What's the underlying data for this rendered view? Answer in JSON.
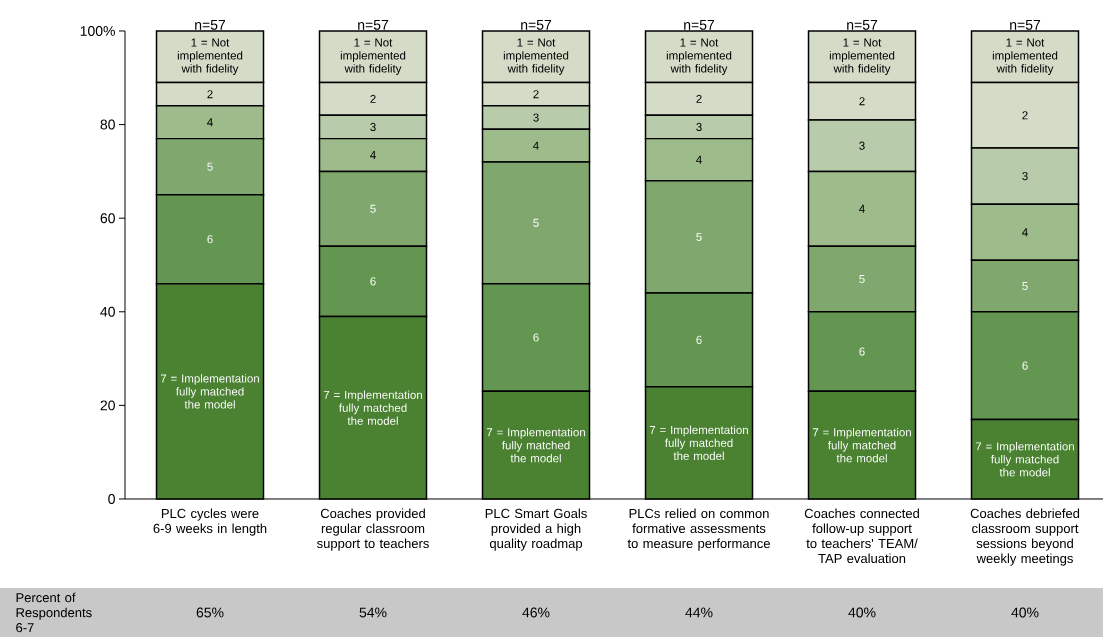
{
  "chart_data": {
    "type": "bar",
    "stacked": true,
    "categories": [
      "PLC cycles were 6-9 weeks in length",
      "Coaches provided regular classroom support to teachers",
      "PLC Smart Goals provided a high quality roadmap",
      "PLCs relied on common formative assessments to measure performance",
      "Coaches connected follow-up support to teachers' TEAM/ TAP evaluation",
      "Coaches debriefed classroom support sessions beyond weekly meetings"
    ],
    "series": [
      {
        "name": "7 = Implementation fully matched the model",
        "color": "#4a8232",
        "values": [
          46,
          39,
          23,
          24,
          23,
          17
        ]
      },
      {
        "name": "6",
        "color": "#639650",
        "values": [
          19,
          15,
          23,
          20,
          17,
          23
        ]
      },
      {
        "name": "5",
        "color": "#80a86e",
        "values": [
          12,
          16,
          26,
          24,
          14,
          11
        ]
      },
      {
        "name": "4",
        "color": "#9ebb8c",
        "values": [
          7,
          7,
          7,
          9,
          16,
          12
        ]
      },
      {
        "name": "3",
        "color": "#b8cbaa",
        "values": [
          0,
          5,
          5,
          5,
          11,
          12
        ]
      },
      {
        "name": "2",
        "color": "#d4dcc8",
        "values": [
          5,
          7,
          5,
          7,
          8,
          14
        ]
      },
      {
        "name": "1 = Not implemented with fidelity",
        "color": "#d4dcc8",
        "values": [
          11,
          11,
          11,
          11,
          11,
          11
        ]
      }
    ],
    "ylim": [
      0,
      100
    ],
    "yticks": [
      0,
      20,
      40,
      60,
      80,
      {
        "value": 100,
        "label": "100%"
      }
    ],
    "annotations": [
      "n=57",
      "n=57",
      "n=57",
      "n=57",
      "n=57",
      "n=57",
      "Percent of Respondents 6-7",
      "65%",
      "54%",
      "46%",
      "44%",
      "40%",
      "40%"
    ]
  }
}
